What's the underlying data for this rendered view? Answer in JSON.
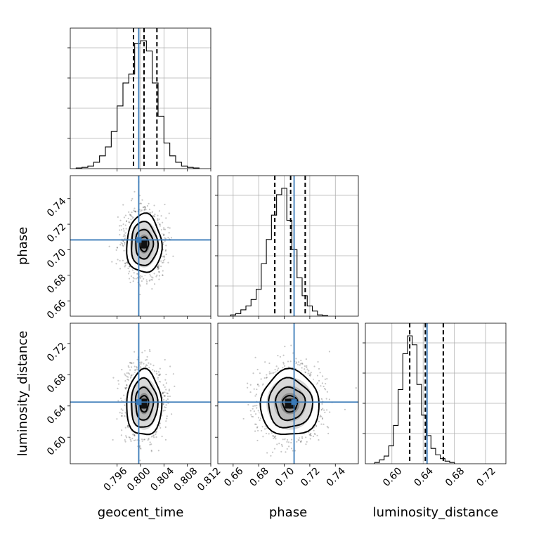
{
  "chart_data": {
    "type": "corner",
    "parameters": [
      {
        "name": "geocent_time",
        "label": "geocent_time",
        "range": [
          0.788,
          0.812
        ],
        "ticks": [
          0.796,
          0.8,
          0.804,
          0.808,
          0.812
        ],
        "tick_labels": [
          "0.796",
          "0.800",
          "0.804",
          "0.808",
          "0.812"
        ],
        "quantiles": [
          0.7988,
          0.8006,
          0.8028
        ],
        "truth": 0.7997
      },
      {
        "name": "phase",
        "label": "phase",
        "range": [
          0.648,
          0.758
        ],
        "ticks": [
          0.66,
          0.68,
          0.7,
          0.72,
          0.74
        ],
        "tick_labels": [
          "0.66",
          "0.68",
          "0.70",
          "0.72",
          "0.74"
        ],
        "quantiles": [
          0.6926,
          0.705,
          0.7164
        ],
        "truth": 0.7077
      },
      {
        "name": "luminosity_distance",
        "label": "luminosity_distance",
        "range": [
          0.566,
          0.746
        ],
        "ticks": [
          0.6,
          0.64,
          0.68,
          0.72
        ],
        "tick_labels": [
          "0.60",
          "0.64",
          "0.68",
          "0.72"
        ],
        "quantiles": [
          0.6228,
          0.6428,
          0.6658
        ],
        "truth": 0.645
      }
    ],
    "histograms": [
      {
        "param": "geocent_time",
        "bin_start": 0.789,
        "bin_width": 0.001,
        "counts": [
          0.005,
          0.01,
          0.02,
          0.05,
          0.1,
          0.17,
          0.29,
          0.49,
          0.67,
          0.74,
          0.98,
          1.0,
          0.92,
          0.67,
          0.41,
          0.2,
          0.1,
          0.05,
          0.02,
          0.01,
          0.005
        ]
      },
      {
        "param": "phase",
        "bin_start": 0.658,
        "bin_width": 0.004,
        "counts": [
          0.01,
          0.02,
          0.05,
          0.08,
          0.13,
          0.21,
          0.41,
          0.6,
          0.79,
          0.95,
          1.0,
          0.75,
          0.52,
          0.3,
          0.16,
          0.08,
          0.04,
          0.01,
          0.005
        ]
      },
      {
        "param": "luminosity_distance",
        "bin_start": 0.578,
        "bin_width": 0.006,
        "counts": [
          0.01,
          0.03,
          0.06,
          0.14,
          0.3,
          0.58,
          0.86,
          1.0,
          0.93,
          0.62,
          0.38,
          0.22,
          0.12,
          0.07,
          0.04,
          0.02,
          0.01
        ]
      }
    ],
    "joint_2d": [
      {
        "x": "geocent_time",
        "y": "phase",
        "center": [
          0.8006,
          0.7045
        ],
        "sigma": [
          0.0015,
          0.0115
        ],
        "truth": [
          0.7997,
          0.7077
        ]
      },
      {
        "x": "geocent_time",
        "y": "luminosity_distance",
        "center": [
          0.8006,
          0.643
        ],
        "sigma": [
          0.0015,
          0.021
        ],
        "truth": [
          0.7997,
          0.645
        ]
      },
      {
        "x": "phase",
        "y": "luminosity_distance",
        "center": [
          0.7045,
          0.643
        ],
        "sigma": [
          0.0115,
          0.021
        ],
        "truth": [
          0.7077,
          0.645
        ]
      }
    ],
    "contour_levels": [
      0.5,
      1.0,
      1.5,
      2.0
    ],
    "grid": true,
    "colors": {
      "truth": "#3a7ab8",
      "contour": "#000000",
      "points": "#000000"
    }
  }
}
